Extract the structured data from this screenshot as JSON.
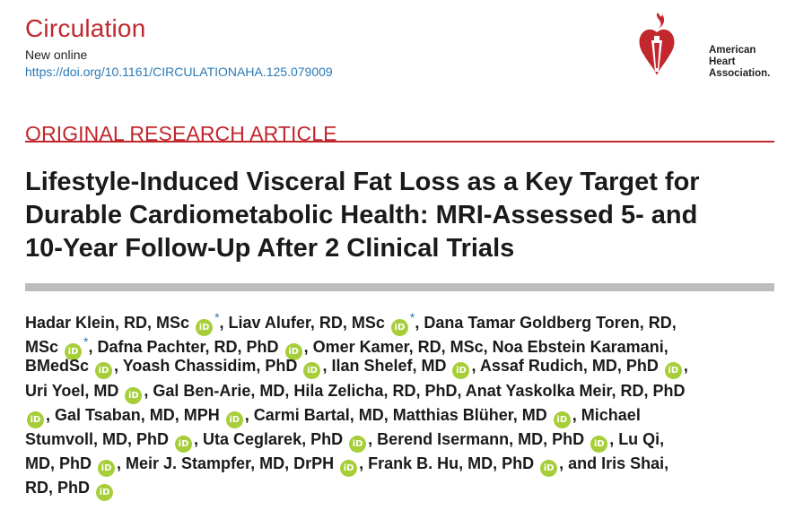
{
  "header": {
    "journal": "Circulation",
    "status": "New online",
    "doi": "https://doi.org/10.1161/CIRCULATIONAHA.125.079009",
    "logo_lines": [
      "American",
      "Heart",
      "Association."
    ]
  },
  "article": {
    "section": "ORIGINAL RESEARCH ARTICLE",
    "title_lines": [
      "Lifestyle-Induced Visceral Fat Loss as a Key Target for",
      "Durable Cardiometabolic Health: MRI-Assessed 5- and",
      "10-Year Follow-Up After 2 Clinical Trials"
    ]
  },
  "authors": {
    "orcid_label": "iD",
    "star": "*",
    "line1": {
      "a": "Hadar Klein, RD, MSc",
      "b": ", Liav Alufer, RD, MSc",
      "c": ", Dana Tamar Goldberg Toren, RD,"
    },
    "line2": {
      "a": "MSc",
      "b": ", Dafna Pachter, RD, PhD",
      "c": ", Omer Kamer, RD, MSc, Noa Ebstein Karamani,"
    },
    "line3": {
      "a": "BMedSc",
      "b": ", Yoash Chassidim, PhD",
      "c": ", Ilan Shelef, MD",
      "d": ", Assaf Rudich, MD, PhD",
      "e": ","
    },
    "line4": {
      "a": "Uri Yoel, MD",
      "b": ", Gal Ben-Arie, MD, Hila Zelicha, RD, PhD, Anat Yaskolka Meir, RD, PhD"
    },
    "line5": {
      "a": ", Gal Tsaban, MD, MPH",
      "b": ", Carmi Bartal, MD, Matthias Blüher, MD",
      "c": ", Michael"
    },
    "line6": {
      "a": "Stumvoll, MD, PhD",
      "b": ", Uta Ceglarek, PhD",
      "c": ", Berend Isermann, MD, PhD",
      "d": ", Lu Qi,"
    },
    "line7": {
      "a": "MD, PhD",
      "b": ", Meir J. Stampfer, MD, DrPH",
      "c": ", Frank B. Hu, MD, PhD",
      "d": ", and Iris Shai,"
    },
    "line8": {
      "a": "RD, PhD"
    }
  },
  "colors": {
    "accent": "#c1272d",
    "link": "#2a7ab8",
    "orcid": "#a6ce39",
    "divider": "#bdbdbd"
  }
}
